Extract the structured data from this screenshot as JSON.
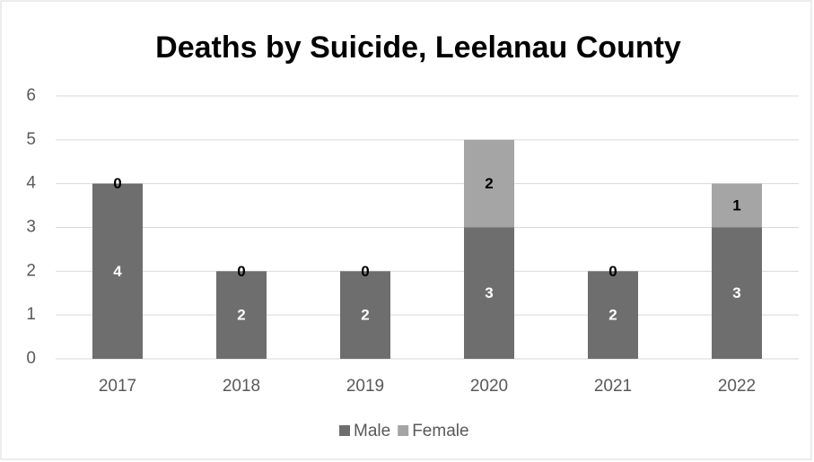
{
  "chart_data": {
    "type": "stacked_bar",
    "title": "Deaths by Suicide, Leelanau County",
    "categories": [
      "2017",
      "2018",
      "2019",
      "2020",
      "2021",
      "2022"
    ],
    "series": [
      {
        "name": "Male",
        "color": "#6e6e6e",
        "values": [
          4,
          2,
          2,
          3,
          2,
          3
        ]
      },
      {
        "name": "Female",
        "color": "#a5a5a5",
        "values": [
          0,
          0,
          0,
          2,
          0,
          1
        ]
      }
    ],
    "ylim": [
      0,
      6
    ],
    "yticks": [
      0,
      1,
      2,
      3,
      4,
      5,
      6
    ],
    "grid": true,
    "legend": "bottom"
  }
}
